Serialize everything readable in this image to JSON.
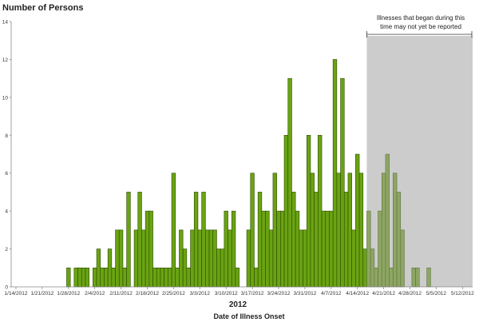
{
  "chart_data": {
    "type": "bar",
    "title": "",
    "ylabel": "Number of Persons",
    "xlabel": "Date of Illness Onset",
    "x_year_label": "2012",
    "ylim": [
      0,
      14
    ],
    "yticks": [
      0,
      2,
      4,
      6,
      8,
      10,
      12,
      14
    ],
    "xlim": [
      "1/14/2012",
      "5/12/2012"
    ],
    "xticks": [
      "1/14/2012",
      "1/21/2012",
      "1/28/2012",
      "2/4/2012",
      "2/11/2012",
      "2/18/2012",
      "2/25/2012",
      "3/3/2012",
      "3/10/2012",
      "3/17/2012",
      "3/24/2012",
      "3/31/2012",
      "4/7/2012",
      "4/14/2012",
      "4/21/2012",
      "4/28/2012",
      "5/5/2012",
      "5/12/2012"
    ],
    "grid": false,
    "x": [
      "1/28",
      "1/29",
      "1/30",
      "1/31",
      "2/1",
      "2/2",
      "2/3",
      "2/4",
      "2/5",
      "2/6",
      "2/7",
      "2/8",
      "2/9",
      "2/10",
      "2/11",
      "2/12",
      "2/13",
      "2/14",
      "2/15",
      "2/16",
      "2/17",
      "2/18",
      "2/19",
      "2/20",
      "2/21",
      "2/22",
      "2/23",
      "2/24",
      "2/25",
      "2/26",
      "2/27",
      "2/28",
      "2/29",
      "3/1",
      "3/2",
      "3/3",
      "3/4",
      "3/5",
      "3/6",
      "3/7",
      "3/8",
      "3/9",
      "3/10",
      "3/11",
      "3/12",
      "3/13",
      "3/14",
      "3/15",
      "3/16",
      "3/17",
      "3/18",
      "3/19",
      "3/20",
      "3/21",
      "3/22",
      "3/23",
      "3/24",
      "3/25",
      "3/26",
      "3/27",
      "3/28",
      "3/29",
      "3/30",
      "3/31",
      "4/1",
      "4/2",
      "4/3",
      "4/4",
      "4/5",
      "4/6",
      "4/7",
      "4/8",
      "4/9",
      "4/10",
      "4/11",
      "4/12",
      "4/13",
      "4/14",
      "4/15",
      "4/16",
      "4/17",
      "4/18",
      "4/19",
      "4/20",
      "4/21",
      "4/22",
      "4/23",
      "4/24",
      "4/25",
      "4/26",
      "4/27",
      "4/28",
      "4/29",
      "4/30",
      "5/1",
      "5/2",
      "5/3"
    ],
    "values": [
      1,
      0,
      1,
      1,
      1,
      1,
      0,
      1,
      2,
      1,
      1,
      2,
      1,
      3,
      3,
      1,
      5,
      0,
      3,
      5,
      3,
      4,
      4,
      1,
      1,
      1,
      1,
      1,
      6,
      1,
      3,
      2,
      1,
      3,
      5,
      3,
      5,
      3,
      3,
      3,
      2,
      2,
      4,
      3,
      4,
      1,
      0,
      0,
      3,
      6,
      1,
      5,
      4,
      4,
      3,
      6,
      4,
      4,
      8,
      11,
      5,
      4,
      3,
      3,
      8,
      6,
      5,
      8,
      4,
      4,
      4,
      12,
      6,
      11,
      5,
      6,
      3,
      7,
      6,
      2,
      4,
      2,
      1,
      4,
      6,
      7,
      1,
      6,
      5,
      3,
      0,
      0,
      1,
      1,
      0,
      0,
      1
    ],
    "shaded_region": {
      "start": "4/17/2012",
      "end": "5/12/2012",
      "annotation_line1": "Illnesses that began during this",
      "annotation_line2": "time may not yet be reported",
      "color": "#cccccc"
    },
    "colors": {
      "bar": "#6aa312",
      "bar_border": "#2c4a00",
      "bar_shaded": "#8ea663",
      "bar_shaded_border": "#5f7440"
    }
  }
}
